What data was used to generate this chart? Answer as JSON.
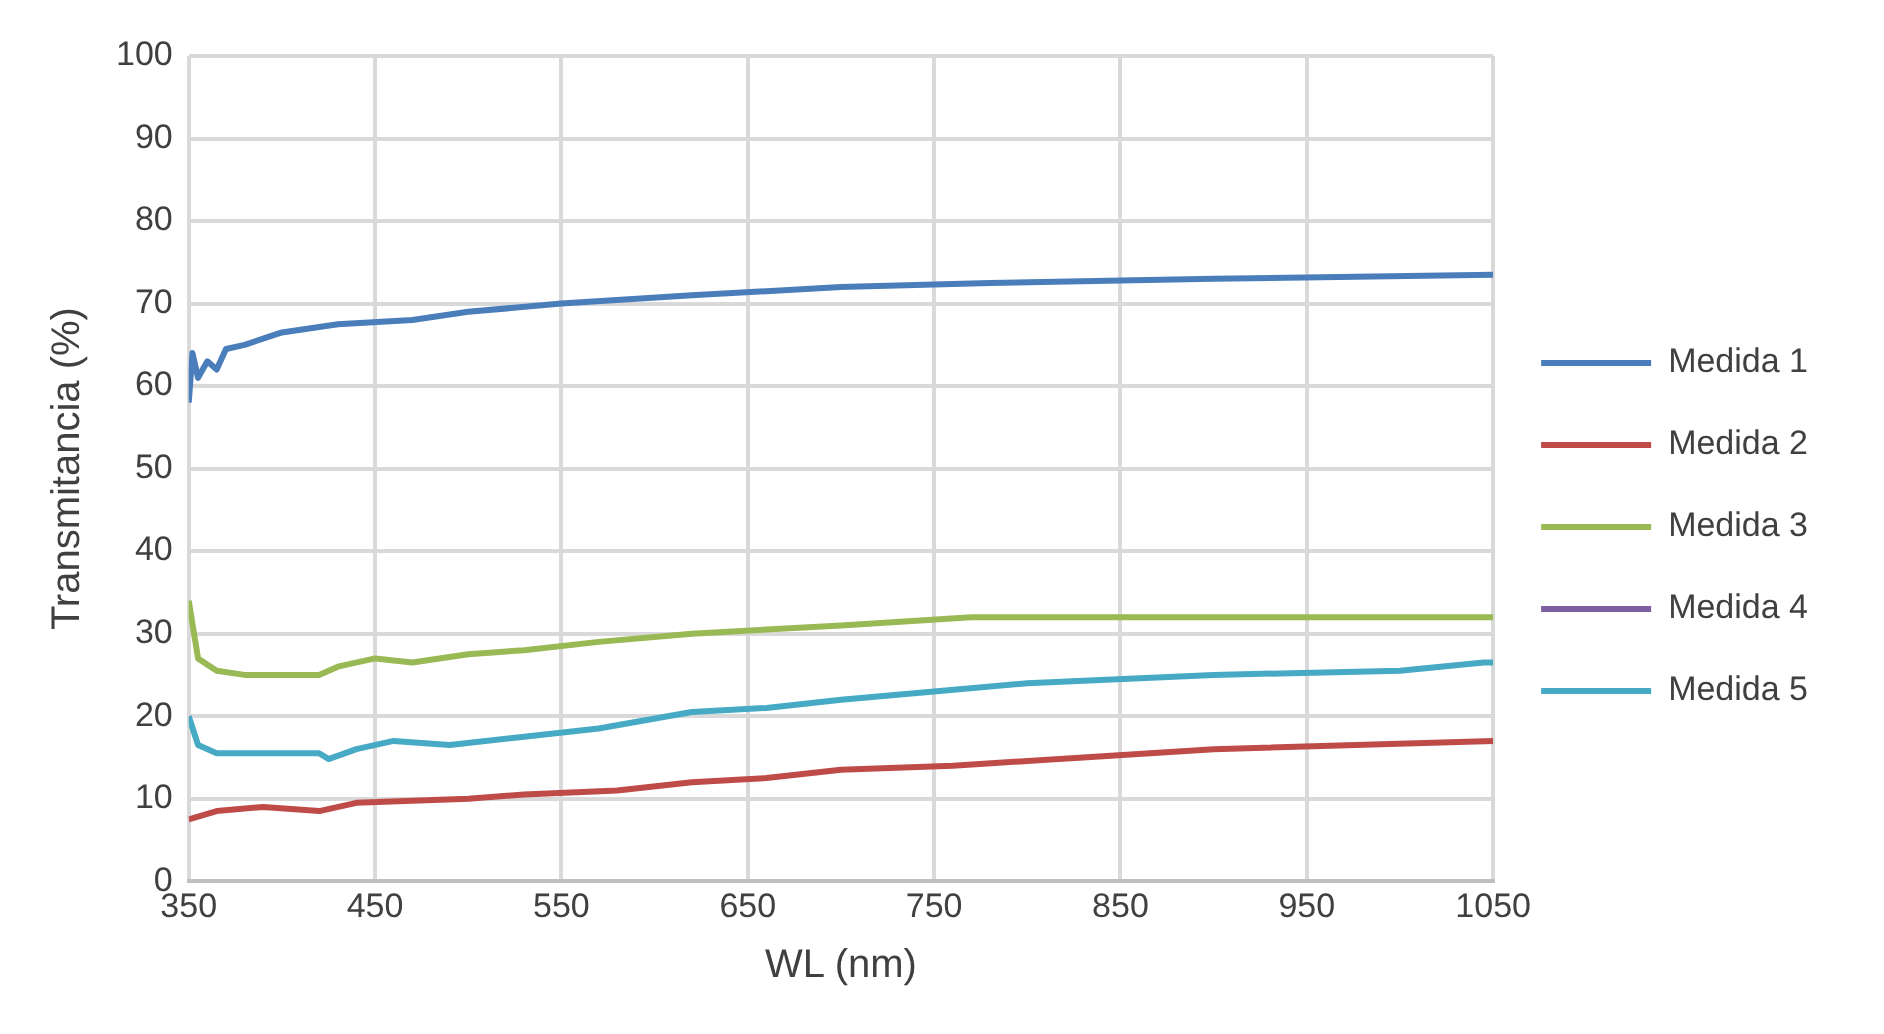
{
  "chart_data": {
    "type": "line",
    "xlabel": "WL (nm)",
    "ylabel": "Transmitancia (%)",
    "xlim": [
      350,
      1050
    ],
    "xticks": [
      350,
      450,
      550,
      650,
      750,
      850,
      950,
      1050
    ],
    "ylim": [
      0,
      100
    ],
    "yticks": [
      0,
      10,
      20,
      30,
      40,
      50,
      60,
      70,
      80,
      90,
      100
    ],
    "grid": true,
    "legend": "right",
    "marker": "none",
    "series": [
      {
        "name": "Medida 1",
        "color": "#4a7ebb",
        "x": [
          350,
          352,
          355,
          360,
          365,
          370,
          380,
          400,
          430,
          470,
          500,
          550,
          620,
          700,
          780,
          900,
          1050
        ],
        "values": [
          58,
          64,
          61,
          63,
          62,
          64.5,
          65,
          66.5,
          67.5,
          68,
          69,
          70,
          71,
          72,
          72.5,
          73,
          73.5
        ]
      },
      {
        "name": "Medida 2",
        "color": "#be4b48",
        "x": [
          350,
          365,
          390,
          420,
          440,
          500,
          530,
          580,
          620,
          660,
          700,
          760,
          830,
          900,
          1050
        ],
        "values": [
          7.5,
          8.5,
          9,
          8.5,
          9.5,
          10,
          10.5,
          11,
          12,
          12.5,
          13.5,
          14,
          15,
          16,
          17
        ]
      },
      {
        "name": "Medida 3",
        "color": "#98b954",
        "x": [
          350,
          355,
          365,
          380,
          420,
          430,
          450,
          470,
          500,
          530,
          570,
          620,
          700,
          770,
          1050
        ],
        "values": [
          34,
          27,
          25.5,
          25,
          25,
          26,
          27,
          26.5,
          27.5,
          28,
          29,
          30,
          31,
          32,
          32
        ]
      },
      {
        "name": "Medida 4",
        "color": "#7d60a0"
      },
      {
        "name": "Medida 5",
        "color": "#46aac5",
        "x": [
          350,
          355,
          365,
          420,
          425,
          440,
          460,
          490,
          530,
          570,
          620,
          660,
          700,
          750,
          800,
          900,
          1000,
          1045,
          1050
        ],
        "values": [
          20,
          16.5,
          15.5,
          15.5,
          14.8,
          16,
          17,
          16.5,
          17.5,
          18.5,
          20.5,
          21,
          22,
          23,
          24,
          25,
          25.5,
          26.5,
          26.5
        ]
      }
    ]
  }
}
